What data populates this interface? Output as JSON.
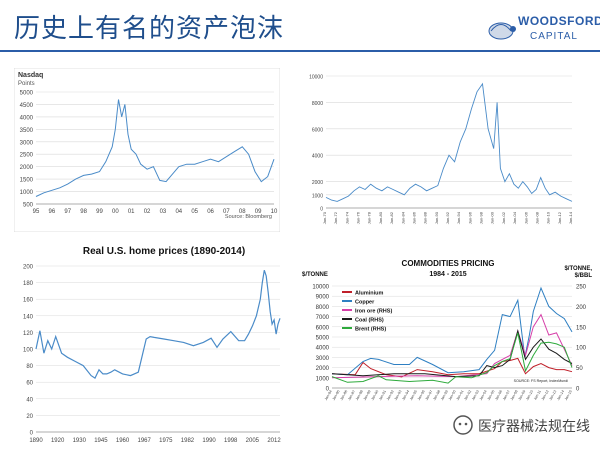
{
  "header": {
    "title": "历史上有名的资产泡沫",
    "logo_line1": "WOODSFORD",
    "logo_line2": "CAPITAL"
  },
  "colors": {
    "title": "#1f4e8c",
    "rule": "#2b5da8",
    "line": "#4a8bc8",
    "grid": "#d9d9d9"
  },
  "watermark": {
    "text": "医疗器械法规在线"
  },
  "chart_data": [
    {
      "type": "line",
      "title": "",
      "ylabel": "Points",
      "header": "Nasdaq",
      "source": "Source: Bloomberg",
      "ylim": [
        500,
        5000
      ],
      "yticks": [
        "500",
        "1000",
        "1500",
        "2000",
        "2500",
        "3000",
        "3500",
        "4000",
        "4500",
        "5000"
      ],
      "xticks": [
        "95",
        "96",
        "97",
        "98",
        "99",
        "00",
        "01",
        "02",
        "03",
        "04",
        "05",
        "06",
        "07",
        "08",
        "09",
        "10"
      ],
      "series": [
        {
          "x": [
            0,
            0.5,
            1,
            1.5,
            2,
            2.5,
            3,
            3.5,
            4,
            4.4,
            4.8,
            5.0,
            5.2,
            5.4,
            5.6,
            5.8,
            6.0,
            6.3,
            6.6,
            7.0,
            7.4,
            7.8,
            8.2,
            8.6,
            9.0,
            9.5,
            10.0,
            10.5,
            11.0,
            11.5,
            12.0,
            12.5,
            13.0,
            13.4,
            13.8,
            14.2,
            14.6,
            15.0
          ],
          "y": [
            800,
            950,
            1050,
            1150,
            1300,
            1500,
            1650,
            1700,
            1800,
            2200,
            2800,
            3500,
            4700,
            4000,
            4500,
            3300,
            2700,
            2500,
            2100,
            1900,
            2000,
            1450,
            1400,
            1700,
            2000,
            2100,
            2100,
            2200,
            2300,
            2200,
            2400,
            2600,
            2800,
            2500,
            1800,
            1400,
            1600,
            2300
          ]
        }
      ]
    },
    {
      "type": "line",
      "title": "",
      "ylim": [
        0,
        10000
      ],
      "yticks": [
        "0",
        "1000",
        "2000",
        "4000",
        "6000",
        "8000",
        "10000"
      ],
      "xticks": [
        "Jan-70",
        "Jan-72",
        "Jan-74",
        "Jan-76",
        "Jan-78",
        "Jan-80",
        "Jan-82",
        "Jan-84",
        "Jan-86",
        "Jan-88",
        "Jan-90",
        "Jan-92",
        "Jan-94",
        "Jan-96",
        "Jan-98",
        "Jan-00",
        "Jan-02",
        "Jan-04",
        "Jan-06",
        "Jan-08",
        "Jan-10",
        "Jan-12",
        "Jan-14"
      ],
      "series": [
        {
          "x": [
            0,
            0.5,
            1,
            1.5,
            2,
            2.5,
            3,
            3.5,
            4,
            4.5,
            5,
            5.5,
            6,
            6.5,
            7,
            7.5,
            8,
            8.5,
            9,
            9.5,
            10,
            10.5,
            11,
            11.5,
            12,
            12.5,
            13,
            13.5,
            14,
            14.5,
            15,
            15.3,
            15.6,
            16,
            16.4,
            16.8,
            17.2,
            17.6,
            18,
            18.4,
            18.8,
            19.2,
            19.6,
            20,
            20.5,
            21,
            21.5,
            22
          ],
          "y": [
            800,
            600,
            500,
            700,
            900,
            1300,
            1600,
            1400,
            1800,
            1500,
            1300,
            1600,
            1400,
            1200,
            1000,
            1500,
            1800,
            1600,
            1300,
            1500,
            1700,
            3000,
            4000,
            3500,
            5000,
            6000,
            7500,
            8800,
            9400,
            6000,
            4500,
            8000,
            3000,
            2000,
            2600,
            1800,
            1500,
            2000,
            1600,
            1100,
            1400,
            2300,
            1500,
            1000,
            1200,
            900,
            700,
            500
          ]
        }
      ]
    },
    {
      "type": "line",
      "title": "Real U.S. home prices (1890-2014)",
      "ylim": [
        0,
        200
      ],
      "yticks": [
        "0",
        "20",
        "40",
        "60",
        "80",
        "100",
        "120",
        "140",
        "160",
        "180",
        "200"
      ],
      "xticks": [
        "1890",
        "1920",
        "1930",
        "1945",
        "1960",
        "1967",
        "1975",
        "1982",
        "1990",
        "1998",
        "2005",
        "2012"
      ],
      "series": [
        {
          "x": [
            1890,
            1892,
            1894,
            1896,
            1898,
            1900,
            1903,
            1906,
            1910,
            1914,
            1918,
            1920,
            1922,
            1924,
            1926,
            1928,
            1930,
            1934,
            1938,
            1942,
            1946,
            1948,
            1950,
            1955,
            1960,
            1965,
            1970,
            1975,
            1979,
            1982,
            1985,
            1989,
            1993,
            1996,
            1998,
            2000,
            2002,
            2004,
            2005,
            2006,
            2007,
            2008,
            2009,
            2010,
            2011,
            2012,
            2013,
            2014
          ],
          "y": [
            100,
            122,
            95,
            110,
            100,
            115,
            95,
            90,
            85,
            80,
            68,
            65,
            75,
            70,
            70,
            72,
            75,
            70,
            68,
            72,
            112,
            115,
            114,
            112,
            110,
            108,
            104,
            108,
            113,
            102,
            112,
            121,
            110,
            110,
            118,
            128,
            140,
            160,
            180,
            195,
            188,
            168,
            145,
            130,
            135,
            118,
            130,
            137
          ]
        }
      ]
    },
    {
      "type": "line",
      "title": "COMMODITIES PRICING",
      "subtitle": "1984 - 2015",
      "ylabel": "$/TONNE",
      "ylabel_right": "$/TONNE, $/BBL",
      "source": "SOURCE: FS Report, IndexMundi",
      "ylim": [
        0,
        10000
      ],
      "ylim_right": [
        0,
        250
      ],
      "yticks": [
        "0",
        "1000",
        "2000",
        "3000",
        "4000",
        "5000",
        "6000",
        "7000",
        "8000",
        "9000",
        "10000"
      ],
      "yticks_right": [
        "0",
        "50",
        "100",
        "150",
        "200",
        "250"
      ],
      "xticks": [
        "Jan-84",
        "Jan-85",
        "Jan-86",
        "Jan-87",
        "Jan-88",
        "Jan-89",
        "Jan-90",
        "Jan-91",
        "Jan-92",
        "Jan-93",
        "Jan-94",
        "Jan-95",
        "Jan-96",
        "Jan-97",
        "Jan-98",
        "Jan-99",
        "Jan-00",
        "Jan-01",
        "Jan-02",
        "Jan-03",
        "Jan-04",
        "Jan-05",
        "Jan-06",
        "Jan-07",
        "Jan-08",
        "Jan-09",
        "Jan-10",
        "Jan-11",
        "Jan-12",
        "Jan-13",
        "Jan-14",
        "Jan-15"
      ],
      "series": [
        {
          "name": "Aluminium",
          "color": "#c0202a",
          "axis": "left",
          "x": [
            1984,
            1987,
            1988,
            1989,
            1991,
            1993,
            1995,
            1997,
            1999,
            2001,
            2003,
            2005,
            2006,
            2007,
            2008,
            2009,
            2010,
            2011,
            2012,
            2013,
            2014,
            2015
          ],
          "y": [
            1400,
            1300,
            2500,
            1900,
            1300,
            1100,
            1800,
            1600,
            1300,
            1400,
            1400,
            1900,
            2600,
            2700,
            2900,
            1400,
            2100,
            2400,
            2000,
            1800,
            1800,
            1600
          ]
        },
        {
          "name": "Copper",
          "color": "#2e7fc2",
          "axis": "left",
          "x": [
            1984,
            1986,
            1988,
            1989,
            1990,
            1992,
            1994,
            1995,
            1997,
            1999,
            2001,
            2003,
            2004,
            2005,
            2006,
            2007,
            2008,
            2008.9,
            2009.5,
            2010,
            2011,
            2012,
            2013,
            2014,
            2015
          ],
          "y": [
            1400,
            1300,
            2600,
            2900,
            2800,
            2300,
            2300,
            3000,
            2300,
            1500,
            1600,
            1800,
            2800,
            3700,
            7200,
            7000,
            8600,
            3000,
            5200,
            7500,
            9800,
            8000,
            7300,
            6800,
            5500
          ]
        },
        {
          "name": "Iron ore (RHS)",
          "color": "#d63ea8",
          "axis": "right",
          "x": [
            1984,
            1990,
            1995,
            2000,
            2004,
            2005,
            2006,
            2007,
            2008,
            2009,
            2010,
            2011,
            2012,
            2013,
            2014,
            2015
          ],
          "y": [
            25,
            28,
            30,
            28,
            35,
            60,
            70,
            80,
            140,
            80,
            150,
            180,
            130,
            135,
            95,
            55
          ]
        },
        {
          "name": "Coal (RHS)",
          "color": "#1a1a1a",
          "axis": "right",
          "x": [
            1984,
            1988,
            1992,
            1996,
            2000,
            2003,
            2004,
            2005,
            2006,
            2007,
            2008,
            2009,
            2010,
            2011,
            2012,
            2013,
            2014,
            2015
          ],
          "y": [
            35,
            30,
            35,
            35,
            28,
            30,
            55,
            50,
            55,
            70,
            140,
            70,
            100,
            120,
            95,
            85,
            70,
            60
          ]
        },
        {
          "name": "Brent (RHS)",
          "color": "#2eaa3c",
          "axis": "right",
          "x": [
            1984,
            1986,
            1988,
            1990,
            1991,
            1994,
            1997,
            1999,
            2000,
            2002,
            2004,
            2005,
            2006,
            2007,
            2008,
            2009,
            2010,
            2011,
            2012,
            2013,
            2014,
            2015
          ],
          "y": [
            28,
            14,
            16,
            30,
            20,
            16,
            19,
            12,
            28,
            25,
            38,
            55,
            65,
            72,
            135,
            42,
            80,
            110,
            112,
            108,
            100,
            50
          ]
        }
      ]
    }
  ]
}
